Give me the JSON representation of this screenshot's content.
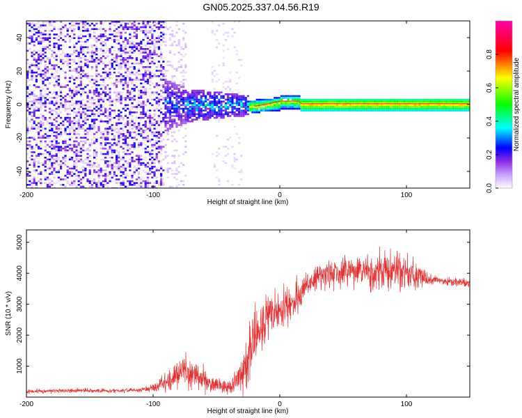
{
  "figure_title": "GN05.2025.337.04.56.R19",
  "chart_data": [
    {
      "type": "heatmap",
      "title": "",
      "xlabel": "Height of straight line (km)",
      "ylabel": "Frequency (Hz)",
      "xlim": [
        -200,
        150
      ],
      "ylim": [
        -50,
        50
      ],
      "xticks": [
        -200,
        -100,
        0,
        100
      ],
      "xtick_labels": [
        "-200",
        "-100",
        "0",
        "100"
      ],
      "yticks": [
        -40,
        -20,
        0,
        20,
        40
      ],
      "ytick_labels": [
        "-40",
        "-20",
        "0",
        "20",
        "40"
      ],
      "colorbar": {
        "label": "Normalized spectral amplitude",
        "range": [
          0,
          1
        ],
        "ticks": [
          0,
          0.2,
          0.4,
          0.6,
          0.8
        ],
        "tick_labels": [
          "0.0",
          "0.2",
          "0.4",
          "0.6",
          "0.8"
        ],
        "colormap": [
          "#ffffff",
          "#8a2be2",
          "#0000ff",
          "#00ffff",
          "#00ff00",
          "#ffff00",
          "#ff0000",
          "#ff00aa"
        ]
      },
      "regions": [
        {
          "x": [
            -200,
            -92
          ],
          "freq_spread": 50,
          "amplitude": 0.08,
          "description": "noise"
        },
        {
          "x": [
            -92,
            -20
          ],
          "freq_spread": 15,
          "amplitude": 0.3
        },
        {
          "x": [
            -20,
            15
          ],
          "freq_spread": 4,
          "amplitude": 0.5
        },
        {
          "x": [
            15,
            150
          ],
          "freq_center": 0.5,
          "freq_spread": 3,
          "amplitude": 0.7
        }
      ],
      "carrier_line": [
        [
          -20,
          -1
        ],
        [
          -12,
          0
        ],
        [
          0,
          2
        ],
        [
          15,
          2
        ],
        [
          17,
          0.5
        ],
        [
          150,
          0.5
        ]
      ]
    },
    {
      "type": "line",
      "title": "",
      "xlabel": "Height of straight line (km)",
      "ylabel": "SNR (10 * v/v)",
      "xlim": [
        -200,
        150
      ],
      "ylim": [
        0,
        5400
      ],
      "xticks": [
        -200,
        -100,
        0,
        100
      ],
      "xtick_labels": [
        "-200",
        "-100",
        "0",
        "100"
      ],
      "yticks": [
        1000,
        2000,
        3000,
        4000,
        5000
      ],
      "ytick_labels": [
        "1000",
        "2000",
        "3000",
        "4000",
        "5000"
      ],
      "color": "#e83030",
      "series": [
        {
          "x": [
            -200,
            -180,
            -160,
            -140,
            -120,
            -105,
            -95,
            -85,
            -75,
            -65,
            -55,
            -45,
            -40,
            -35,
            -30,
            -25,
            -20,
            -15,
            -10,
            -5,
            0,
            5,
            10,
            15,
            20,
            25,
            30,
            40,
            50,
            60,
            70,
            80,
            90,
            100,
            110,
            120,
            130,
            140,
            150
          ],
          "y": [
            180,
            200,
            210,
            200,
            220,
            250,
            400,
            600,
            900,
            650,
            450,
            350,
            300,
            500,
            800,
            1400,
            1900,
            2200,
            2500,
            2600,
            2800,
            3000,
            3100,
            3200,
            3500,
            3700,
            3900,
            4000,
            4000,
            4050,
            4000,
            4000,
            4050,
            4000,
            3900,
            3800,
            3750,
            3700,
            3650
          ],
          "noise": [
            60,
            60,
            60,
            60,
            60,
            80,
            200,
            350,
            450,
            350,
            250,
            200,
            200,
            400,
            600,
            800,
            800,
            700,
            700,
            600,
            600,
            500,
            500,
            500,
            400,
            400,
            400,
            450,
            500,
            500,
            550,
            550,
            600,
            550,
            300,
            150,
            120,
            120,
            120
          ]
        }
      ]
    }
  ]
}
